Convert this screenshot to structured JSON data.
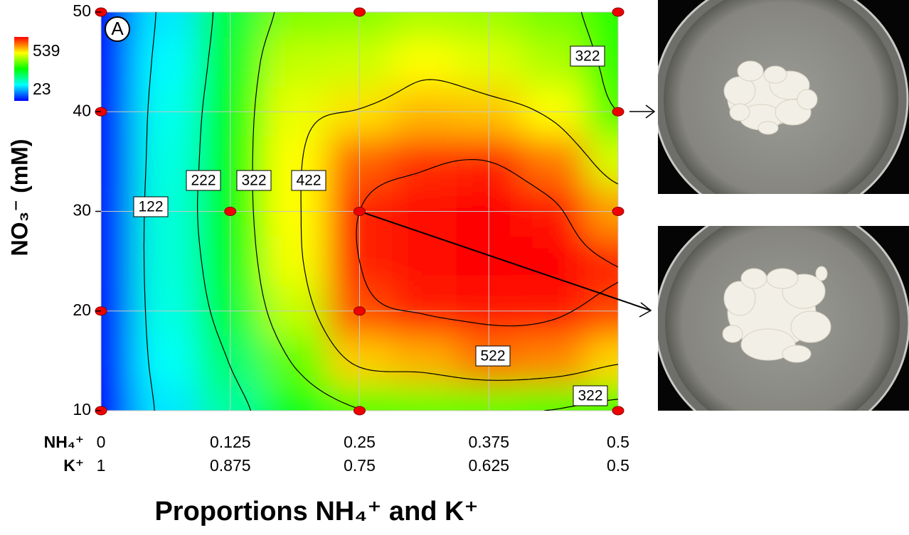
{
  "chart_data": {
    "type": "heatmap-contour",
    "panel_label": "A",
    "ylabel": "NO₃⁻ (mM)",
    "xlabel": "Proportions NH₄⁺ and K⁺",
    "x_row_labels": [
      "NH₄⁺",
      "K⁺"
    ],
    "xlim": [
      0,
      0.5
    ],
    "ylim": [
      10,
      50
    ],
    "xticks": [
      0,
      0.125,
      0.25,
      0.375,
      0.5
    ],
    "xticks2": [
      1,
      0.875,
      0.75,
      0.625,
      0.5
    ],
    "yticks": [
      10,
      20,
      30,
      40,
      50
    ],
    "grid": true,
    "zlim": [
      23,
      539
    ],
    "colorscale": [
      "#0000ff",
      "#00ffff",
      "#00ff00",
      "#ffff00",
      "#ff0000"
    ],
    "grid_x": [
      0,
      0.0625,
      0.125,
      0.1875,
      0.25,
      0.3125,
      0.375,
      0.4375,
      0.5
    ],
    "grid_y": [
      10,
      15,
      20,
      25,
      30,
      35,
      40,
      45,
      50
    ],
    "z": [
      [
        25,
        140,
        200,
        270,
        320,
        330,
        330,
        320,
        300
      ],
      [
        28,
        155,
        225,
        330,
        435,
        450,
        480,
        470,
        430
      ],
      [
        30,
        165,
        250,
        380,
        500,
        525,
        530,
        528,
        505
      ],
      [
        32,
        170,
        265,
        405,
        522,
        535,
        538,
        537,
        520
      ],
      [
        32,
        170,
        275,
        410,
        522,
        535,
        539,
        530,
        460
      ],
      [
        31,
        165,
        275,
        410,
        490,
        515,
        522,
        480,
        390
      ],
      [
        30,
        160,
        270,
        400,
        425,
        445,
        440,
        410,
        322
      ],
      [
        28,
        150,
        260,
        380,
        385,
        410,
        395,
        370,
        305
      ],
      [
        25,
        140,
        250,
        345,
        350,
        365,
        360,
        340,
        300
      ]
    ],
    "contour_levels": [
      122,
      222,
      322,
      422,
      522
    ],
    "contour_color": "#000000",
    "points": {
      "x": [
        0,
        0,
        0,
        0,
        0.125,
        0.25,
        0.25,
        0.25,
        0.25,
        0.5,
        0.5,
        0.5,
        0.5
      ],
      "y": [
        10,
        20,
        40,
        50,
        30,
        10,
        20,
        30,
        50,
        10,
        30,
        40,
        50
      ],
      "color": "#ee0000"
    }
  }
}
